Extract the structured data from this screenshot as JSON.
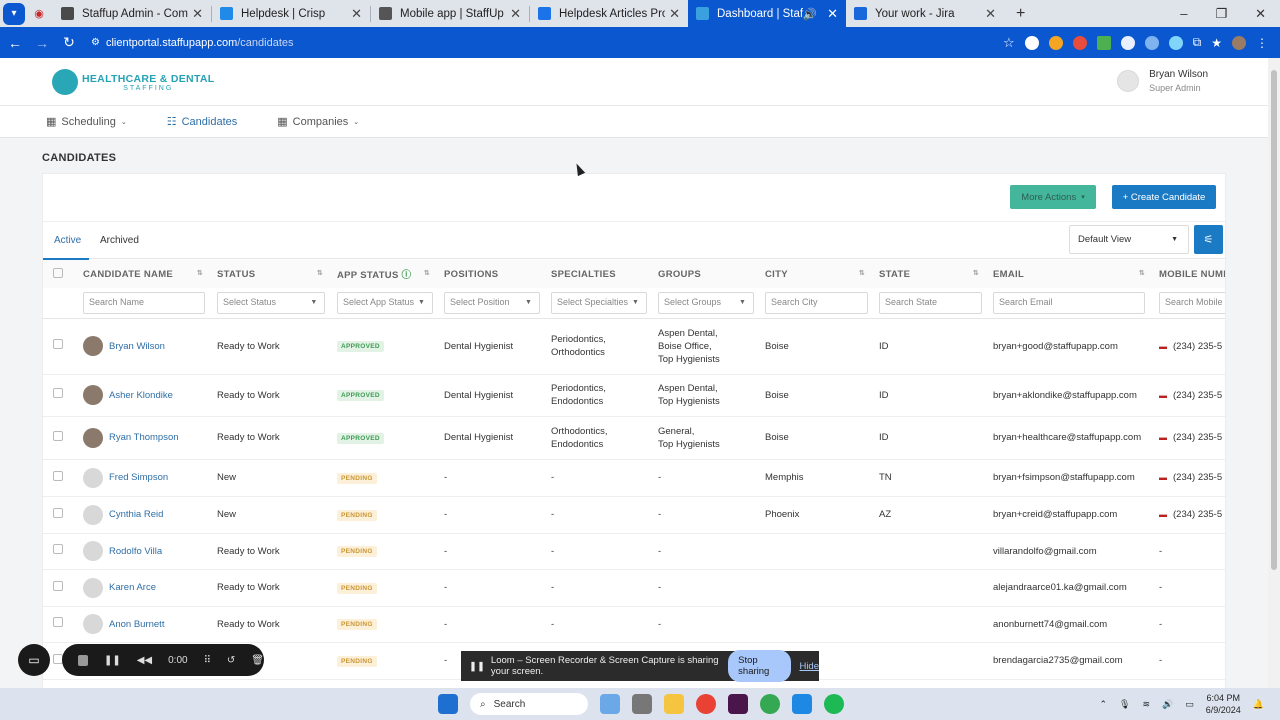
{
  "browser": {
    "tabs": [
      {
        "title": "Staffup Admin - Company",
        "color": "#4a4a4a"
      },
      {
        "title": "Helpdesk | Crisp",
        "color": "#1f8ae8"
      },
      {
        "title": "Mobile app | StaffUp Helpdesk",
        "color": "#555555"
      },
      {
        "title": "Helpdesk Articles Project - Goo",
        "color": "#1a73e8"
      },
      {
        "title": "Dashboard | StaffUp Client",
        "color": "#3aa0e0"
      },
      {
        "title": "Your work - Jira",
        "color": "#1868db"
      }
    ],
    "url_host": "clientportal.staffupapp.com",
    "url_path": "/candidates"
  },
  "header": {
    "logo_line1": "HEALTHCARE & DENTAL",
    "logo_line2": "STAFFING",
    "user_name": "Bryan Wilson",
    "user_role": "Super Admin"
  },
  "nav": {
    "scheduling": "Scheduling",
    "candidates": "Candidates",
    "companies": "Companies"
  },
  "page": {
    "title": "CANDIDATES",
    "more_actions": "More Actions",
    "create_candidate": "+ Create Candidate",
    "tab_active": "Active",
    "tab_archived": "Archived",
    "default_view": "Default View"
  },
  "table": {
    "headers": [
      "CANDIDATE NAME",
      "STATUS",
      "APP STATUS",
      "POSITIONS",
      "SPECIALTIES",
      "GROUPS",
      "CITY",
      "STATE",
      "EMAIL",
      "MOBILE NUMBE"
    ],
    "filters": [
      "Search Name",
      "Select Status",
      "Select App Status",
      "Select Position",
      "Select Specialties",
      "Select Groups",
      "Search City",
      "Search State",
      "Search Email",
      "Search Mobile"
    ],
    "rows": [
      {
        "name": "Bryan Wilson",
        "status": "Ready to Work",
        "app": "APPROVED",
        "position": "Dental Hygienist",
        "spec": "Periodontics,\nOrthodontics",
        "groups": "Aspen Dental,\nBoise Office,\nTop Hygienists",
        "city": "Boise",
        "state": "ID",
        "email": "bryan+good@staffupapp.com",
        "mobile": "(234) 235-5"
      },
      {
        "name": "Asher Klondike",
        "status": "Ready to Work",
        "app": "APPROVED",
        "position": "Dental Hygienist",
        "spec": "Periodontics,\nEndodontics",
        "groups": "Aspen Dental,\nTop Hygienists",
        "city": "Boise",
        "state": "ID",
        "email": "bryan+aklondike@staffupapp.com",
        "mobile": "(234) 235-5"
      },
      {
        "name": "Ryan Thompson",
        "status": "Ready to Work",
        "app": "APPROVED",
        "position": "Dental Hygienist",
        "spec": "Orthodontics,\nEndodontics",
        "groups": "General,\nTop Hygienists",
        "city": "Boise",
        "state": "ID",
        "email": "bryan+healthcare@staffupapp.com",
        "mobile": "(234) 235-5"
      },
      {
        "name": "Fred Simpson",
        "status": "New",
        "app": "PENDING",
        "position": "-",
        "spec": "-",
        "groups": "-",
        "city": "Memphis",
        "state": "TN",
        "email": "bryan+fsimpson@staffupapp.com",
        "mobile": "(234) 235-5"
      },
      {
        "name": "Cynthia Reid",
        "status": "New",
        "app": "PENDING",
        "position": "-",
        "spec": "-",
        "groups": "-",
        "city": "Phoenix",
        "state": "AZ",
        "email": "bryan+creid@staffupapp.com",
        "mobile": "(234) 235-5"
      },
      {
        "name": "Rodolfo Villa",
        "status": "Ready to Work",
        "app": "PENDING",
        "position": "-",
        "spec": "-",
        "groups": "-",
        "city": "",
        "state": "",
        "email": "villarandolfo@gmail.com",
        "mobile": "-"
      },
      {
        "name": "Karen Arce",
        "status": "Ready to Work",
        "app": "PENDING",
        "position": "-",
        "spec": "-",
        "groups": "-",
        "city": "",
        "state": "",
        "email": "alejandraarce01.ka@gmail.com",
        "mobile": "-"
      },
      {
        "name": "Anon Burnett",
        "status": "Ready to Work",
        "app": "PENDING",
        "position": "-",
        "spec": "-",
        "groups": "-",
        "city": "",
        "state": "",
        "email": "anonburnett74@gmail.com",
        "mobile": "-"
      },
      {
        "name": "",
        "status": "ork",
        "app": "PENDING",
        "position": "-",
        "spec": "",
        "groups": "",
        "city": "",
        "state": "",
        "email": "brendagarcia2735@gmail.com",
        "mobile": "-"
      }
    ]
  },
  "loom": {
    "timer": "0:00",
    "banner": "Loom – Screen Recorder & Screen Capture is sharing your screen.",
    "stop": "Stop sharing",
    "hide": "Hide"
  },
  "taskbar": {
    "search": "Search",
    "time": "6:04 PM",
    "date": "6/9/2024"
  }
}
